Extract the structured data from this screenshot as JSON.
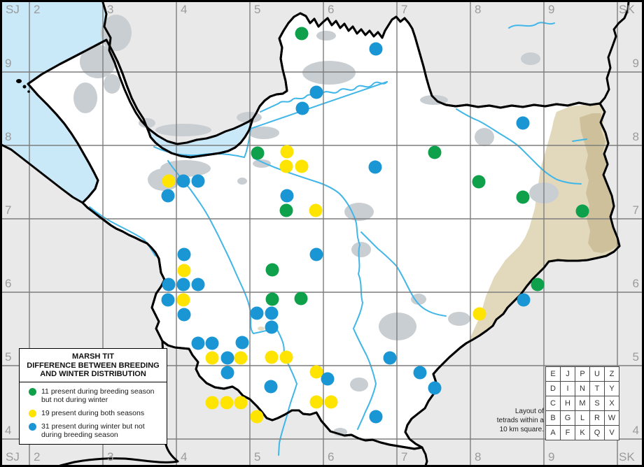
{
  "grid": {
    "top_labels": [
      "SJ",
      "2",
      "3",
      "4",
      "5",
      "6",
      "7",
      "8",
      "9",
      "SK"
    ],
    "bottom_labels": [
      "SJ",
      "2",
      "3",
      "4",
      "5",
      "6",
      "7",
      "8",
      "9",
      "SK"
    ],
    "left_labels": [
      "9",
      "8",
      "7",
      "6",
      "5",
      "4"
    ],
    "right_labels": [
      "9",
      "8",
      "7",
      "6",
      "5",
      "4"
    ]
  },
  "legend": {
    "title_lines": [
      "MARSH TIT",
      "DIFFERENCE BETWEEN BREEDING",
      "AND WINTER DISTRIBUTION"
    ],
    "items": [
      {
        "color_key": "green",
        "line1": "11 present during breeding season",
        "line2": "but not during winter"
      },
      {
        "color_key": "yellow",
        "line1": "19 present during both seasons",
        "line2": ""
      },
      {
        "color_key": "blue",
        "line1": "31 present during winter but not",
        "line2": "during breeding season"
      }
    ]
  },
  "tetrad": {
    "rows": [
      [
        "E",
        "J",
        "P",
        "U",
        "Z"
      ],
      [
        "D",
        "I",
        "N",
        "T",
        "Y"
      ],
      [
        "C",
        "H",
        "M",
        "S",
        "X"
      ],
      [
        "B",
        "G",
        "L",
        "R",
        "W"
      ],
      [
        "A",
        "F",
        "K",
        "Q",
        "V"
      ]
    ],
    "caption_lines": [
      "Layout of",
      "tetrads within a",
      "10 km square."
    ]
  },
  "colors": {
    "green": "#0FA04C",
    "yellow": "#FFE400",
    "blue": "#1B96D4",
    "sea": "#C9E8F8",
    "outside": "#E9E9E9",
    "county": "#FFFFFF",
    "urban": "#C9CED2",
    "upland_light": "#E2D9BC",
    "upland_dark": "#CEC09A",
    "river": "#41B6E8",
    "grid_line": "#7D7D7D",
    "label_gray": "#9B9B9B"
  },
  "dots": {
    "green": [
      [
        431,
        48
      ],
      [
        368,
        219
      ],
      [
        621,
        218
      ],
      [
        684,
        260
      ],
      [
        747,
        282
      ],
      [
        832,
        302
      ],
      [
        409,
        301
      ],
      [
        389,
        386
      ],
      [
        389,
        428
      ],
      [
        430,
        427
      ],
      [
        768,
        407
      ]
    ],
    "yellow": [
      [
        410,
        217
      ],
      [
        409,
        238
      ],
      [
        431,
        238
      ],
      [
        241,
        259
      ],
      [
        451,
        301
      ],
      [
        263,
        387
      ],
      [
        262,
        429
      ],
      [
        685,
        449
      ],
      [
        303,
        512
      ],
      [
        344,
        512
      ],
      [
        388,
        511
      ],
      [
        409,
        511
      ],
      [
        452,
        532
      ],
      [
        303,
        576
      ],
      [
        324,
        576
      ],
      [
        344,
        576
      ],
      [
        452,
        575
      ],
      [
        473,
        575
      ],
      [
        367,
        596
      ]
    ],
    "blue": [
      [
        537,
        70
      ],
      [
        452,
        132
      ],
      [
        432,
        155
      ],
      [
        747,
        176
      ],
      [
        536,
        239
      ],
      [
        262,
        259
      ],
      [
        283,
        259
      ],
      [
        240,
        280
      ],
      [
        410,
        280
      ],
      [
        263,
        364
      ],
      [
        452,
        364
      ],
      [
        241,
        407
      ],
      [
        262,
        407
      ],
      [
        283,
        407
      ],
      [
        240,
        429
      ],
      [
        263,
        450
      ],
      [
        367,
        448
      ],
      [
        388,
        448
      ],
      [
        388,
        468
      ],
      [
        283,
        491
      ],
      [
        303,
        491
      ],
      [
        346,
        490
      ],
      [
        325,
        512
      ],
      [
        557,
        512
      ],
      [
        325,
        533
      ],
      [
        600,
        533
      ],
      [
        387,
        553
      ],
      [
        621,
        555
      ],
      [
        537,
        596
      ],
      [
        748,
        429
      ],
      [
        468,
        542
      ]
    ]
  }
}
